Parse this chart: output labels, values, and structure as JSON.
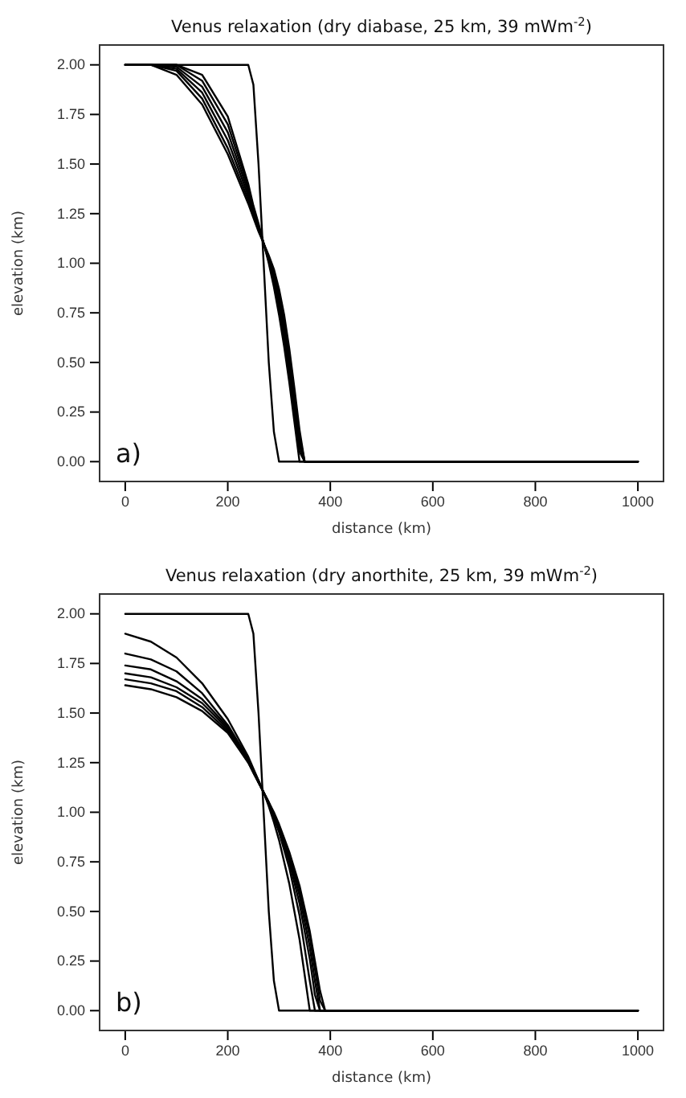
{
  "chart_data": [
    {
      "type": "line",
      "title": "Venus relaxation (dry diabase, 25 km, 39 mWm$^{-2}$)",
      "xlabel": "distance (km)",
      "ylabel": "elevation (km)",
      "annotations": [
        "a)"
      ],
      "x": [
        0,
        50,
        100,
        150,
        200,
        240,
        250,
        260,
        270,
        280,
        290,
        300,
        310,
        320,
        330,
        340,
        350,
        1000
      ],
      "xlim": [
        -50,
        1050
      ],
      "xticks": [
        0,
        200,
        400,
        600,
        800,
        1000
      ],
      "ylim": [
        -0.1,
        2.1
      ],
      "yticks": [
        {
          "value": 0,
          "label": "0.00"
        },
        {
          "value": 0.25,
          "label": "0.25"
        },
        {
          "value": 0.5,
          "label": "0.50"
        },
        {
          "value": 0.75,
          "label": "0.75"
        },
        {
          "value": 1,
          "label": "1.00"
        },
        {
          "value": 1.25,
          "label": "1.25"
        },
        {
          "value": 1.5,
          "label": "1.50"
        },
        {
          "value": 1.75,
          "label": "1.75"
        },
        {
          "value": 2,
          "label": "2.00"
        }
      ],
      "series": [
        {
          "color": "#000000",
          "values": [
            2,
            2,
            2,
            2,
            2,
            2,
            1.9,
            1.5,
            1.0,
            0.5,
            0.15,
            0,
            0,
            0,
            0,
            0,
            0,
            0
          ]
        },
        {
          "color": "#000000",
          "values": [
            2,
            2,
            1.95,
            1.8,
            1.55,
            1.3,
            1.23,
            1.16,
            1.1,
            1.0,
            0.88,
            0.74,
            0.58,
            0.4,
            0.2,
            0,
            0,
            0
          ]
        },
        {
          "color": "#000000",
          "values": [
            2,
            2,
            1.97,
            1.83,
            1.58,
            1.32,
            1.24,
            1.17,
            1.1,
            1.01,
            0.9,
            0.77,
            0.61,
            0.43,
            0.23,
            0.05,
            0,
            0
          ]
        },
        {
          "color": "#000000",
          "values": [
            2,
            2,
            1.98,
            1.86,
            1.62,
            1.34,
            1.26,
            1.18,
            1.1,
            1.02,
            0.92,
            0.79,
            0.64,
            0.46,
            0.26,
            0.08,
            0,
            0
          ]
        },
        {
          "color": "#000000",
          "values": [
            2,
            2,
            1.99,
            1.89,
            1.66,
            1.36,
            1.27,
            1.19,
            1.1,
            1.02,
            0.93,
            0.81,
            0.67,
            0.5,
            0.3,
            0.1,
            0,
            0
          ]
        },
        {
          "color": "#000000",
          "values": [
            2,
            2,
            2,
            1.92,
            1.7,
            1.38,
            1.28,
            1.19,
            1.1,
            1.03,
            0.95,
            0.84,
            0.7,
            0.53,
            0.33,
            0.13,
            0,
            0
          ]
        },
        {
          "color": "#000000",
          "values": [
            2,
            2,
            2,
            1.95,
            1.74,
            1.4,
            1.29,
            1.2,
            1.1,
            1.04,
            0.97,
            0.87,
            0.74,
            0.57,
            0.37,
            0.16,
            0,
            0
          ]
        }
      ]
    },
    {
      "type": "line",
      "title": "Venus relaxation (dry anorthite, 25 km, 39 mWm$^{-2}$)",
      "xlabel": "distance (km)",
      "ylabel": "elevation (km)",
      "annotations": [
        "b)"
      ],
      "x": [
        0,
        50,
        100,
        150,
        200,
        240,
        250,
        260,
        270,
        280,
        290,
        300,
        320,
        340,
        360,
        370,
        380,
        390,
        400,
        1000
      ],
      "xlim": [
        -50,
        1050
      ],
      "xticks": [
        0,
        200,
        400,
        600,
        800,
        1000
      ],
      "ylim": [
        -0.1,
        2.1
      ],
      "yticks": [
        {
          "value": 0,
          "label": "0.00"
        },
        {
          "value": 0.25,
          "label": "0.25"
        },
        {
          "value": 0.5,
          "label": "0.50"
        },
        {
          "value": 0.75,
          "label": "0.75"
        },
        {
          "value": 1,
          "label": "1.00"
        },
        {
          "value": 1.25,
          "label": "1.25"
        },
        {
          "value": 1.5,
          "label": "1.50"
        },
        {
          "value": 1.75,
          "label": "1.75"
        },
        {
          "value": 2,
          "label": "2.00"
        }
      ],
      "series": [
        {
          "color": "#000000",
          "values": [
            2,
            2,
            2,
            2,
            2,
            2,
            1.9,
            1.5,
            1.0,
            0.5,
            0.15,
            0,
            0,
            0,
            0,
            0,
            0,
            0,
            0,
            0
          ]
        },
        {
          "color": "#000000",
          "values": [
            1.9,
            1.86,
            1.78,
            1.65,
            1.47,
            1.28,
            1.22,
            1.16,
            1.1,
            1.03,
            0.95,
            0.86,
            0.64,
            0.36,
            0,
            0,
            0,
            0,
            0,
            0
          ]
        },
        {
          "color": "#000000",
          "values": [
            1.8,
            1.77,
            1.71,
            1.6,
            1.44,
            1.27,
            1.21,
            1.16,
            1.1,
            1.04,
            0.97,
            0.9,
            0.72,
            0.48,
            0.15,
            0,
            0,
            0,
            0,
            0
          ]
        },
        {
          "color": "#000000",
          "values": [
            1.74,
            1.72,
            1.66,
            1.57,
            1.43,
            1.26,
            1.21,
            1.15,
            1.1,
            1.04,
            0.98,
            0.91,
            0.75,
            0.54,
            0.26,
            0.08,
            0,
            0,
            0,
            0
          ]
        },
        {
          "color": "#000000",
          "values": [
            1.7,
            1.68,
            1.63,
            1.55,
            1.42,
            1.26,
            1.2,
            1.15,
            1.1,
            1.05,
            0.99,
            0.92,
            0.77,
            0.58,
            0.32,
            0.15,
            0,
            0,
            0,
            0
          ]
        },
        {
          "color": "#000000",
          "values": [
            1.67,
            1.65,
            1.61,
            1.53,
            1.41,
            1.25,
            1.2,
            1.15,
            1.1,
            1.05,
            0.99,
            0.93,
            0.79,
            0.61,
            0.37,
            0.21,
            0.05,
            0,
            0,
            0
          ]
        },
        {
          "color": "#000000",
          "values": [
            1.64,
            1.62,
            1.58,
            1.51,
            1.4,
            1.25,
            1.2,
            1.15,
            1.1,
            1.05,
            1.0,
            0.94,
            0.8,
            0.63,
            0.4,
            0.25,
            0.1,
            0,
            0,
            0
          ]
        }
      ]
    }
  ]
}
